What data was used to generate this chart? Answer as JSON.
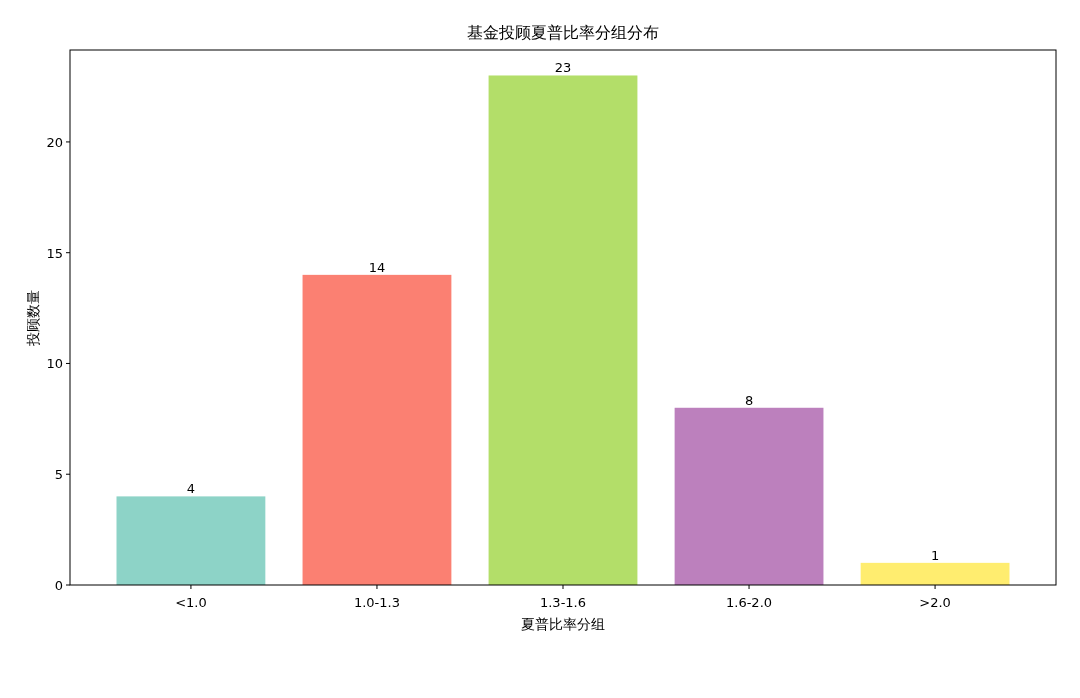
{
  "chart_data": {
    "type": "bar",
    "title": "基金投顾夏普比率分组分布",
    "xlabel": "夏普比率分组",
    "ylabel": "投顾数量",
    "categories": [
      "<1.0",
      "1.0-1.3",
      "1.3-1.6",
      "1.6-2.0",
      ">2.0"
    ],
    "values": [
      4,
      14,
      23,
      8,
      1
    ],
    "colors": [
      "#8dd3c7",
      "#fb8072",
      "#b3de69",
      "#bc80bd",
      "#ffed6f"
    ],
    "ylim": [
      0,
      24.15
    ],
    "yticks": [
      0,
      5,
      10,
      15,
      20
    ],
    "data_labels": true
  }
}
